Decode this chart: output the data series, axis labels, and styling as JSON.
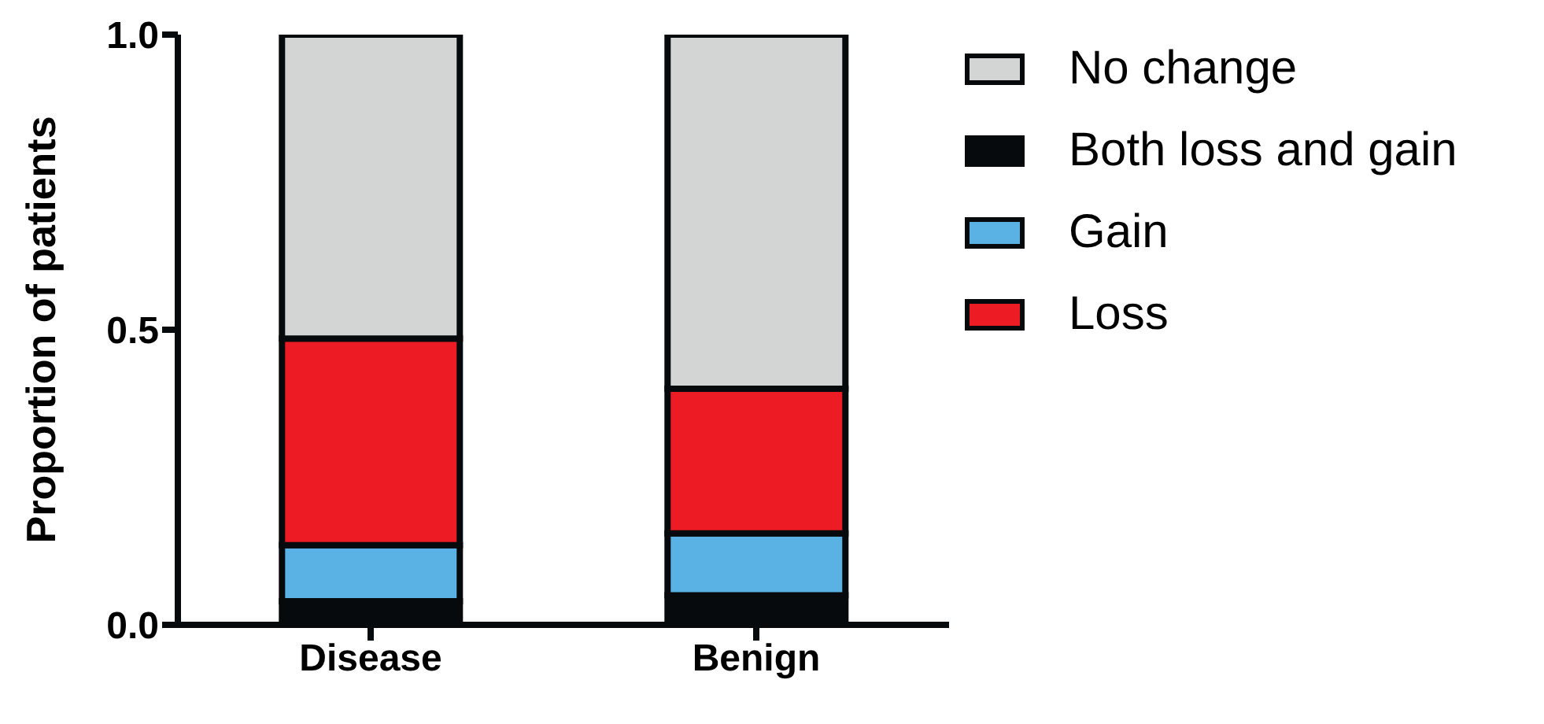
{
  "chart_data": {
    "type": "bar",
    "stacked": true,
    "ylabel": "Proportion of patients",
    "categories": [
      "Disease",
      "Benign"
    ],
    "series": [
      {
        "name": "Both loss and gain",
        "color": "#060a0c",
        "values": [
          0.04,
          0.05
        ]
      },
      {
        "name": "Gain",
        "color": "#59b1e4",
        "values": [
          0.095,
          0.105
        ]
      },
      {
        "name": "Loss",
        "color": "#ed1c24",
        "values": [
          0.35,
          0.245
        ]
      },
      {
        "name": "No change",
        "color": "#d3d4d4",
        "values": [
          0.515,
          0.6
        ]
      }
    ],
    "ylim": [
      0,
      1
    ],
    "yticks": [
      {
        "value": 0,
        "label": "0.0"
      },
      {
        "value": 0.5,
        "label": "0.5"
      },
      {
        "value": 1,
        "label": "1.0"
      }
    ],
    "grid": false,
    "legend": "top right"
  }
}
